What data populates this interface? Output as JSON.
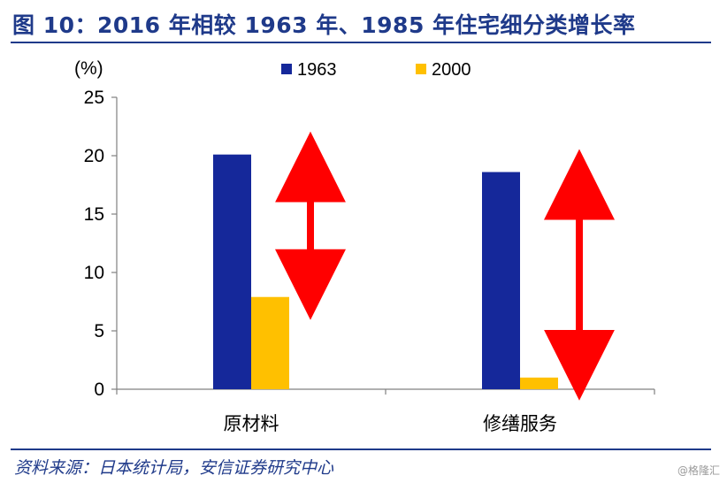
{
  "header": {
    "title": "图 10：2016 年相较 1963 年、1985 年住宅细分类增长率"
  },
  "footer": {
    "source": "资料来源：日本统计局，安信证券研究中心",
    "watermark": "@格隆汇"
  },
  "colors": {
    "brand": "#1f3a8a",
    "series_1963": "#15289a",
    "series_2000": "#ffc000",
    "arrow": "#ff0000"
  },
  "chart_data": {
    "type": "bar",
    "title": "",
    "xlabel": "",
    "ylabel": "(%)",
    "ylim": [
      0,
      25
    ],
    "yticks": [
      0,
      5,
      10,
      15,
      20,
      25
    ],
    "categories": [
      "原材料",
      "修缮服务"
    ],
    "series": [
      {
        "name": "1963",
        "values": [
          20.1,
          18.6
        ]
      },
      {
        "name": "2000",
        "values": [
          7.9,
          1.0
        ]
      }
    ],
    "legend_position": "top",
    "grid": false,
    "annotations": [
      "double-headed red arrow between series in each category"
    ]
  }
}
